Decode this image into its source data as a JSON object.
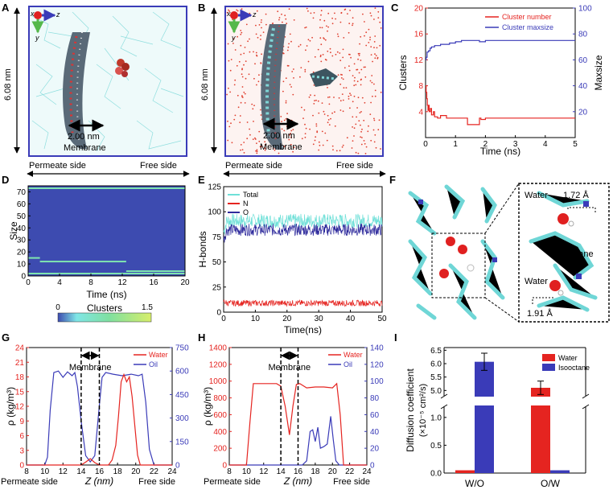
{
  "panel_labels": [
    "A",
    "B",
    "C",
    "D",
    "E",
    "F",
    "G",
    "H",
    "I"
  ],
  "colors": {
    "red": "#e52420",
    "blue": "#3a3bb8",
    "cyan": "#7fe0e0",
    "frame": "#3a3bb8",
    "heat_bg": "#3d4bb0",
    "heat_line": "#7fe6b0",
    "total": "#6fe0d8",
    "navy": "#2e2a9c"
  },
  "panel_a": {
    "axis_x": "x",
    "axis_y": "y",
    "axis_z": "z",
    "height_label": "6.08 nm",
    "width_label": "2.00 nm",
    "membrane_label": "Membrane",
    "permeate_label": "Permeate side",
    "free_label": "Free side"
  },
  "panel_b": {
    "axis_x": "x",
    "axis_y": "y",
    "axis_z": "z",
    "height_label": "6.08 nm",
    "width_label": "2.00 nm",
    "membrane_label": "Membrane",
    "permeate_label": "Permeate side",
    "free_label": "Free side"
  },
  "panel_f": {
    "water_top": "Water",
    "dist_top": "1.72 Å",
    "membrane": "Membrane",
    "water_bottom": "Water",
    "dist_bottom": "1.91 Å"
  },
  "chart_data": [
    {
      "id": "C",
      "type": "line",
      "xlabel": "Time (ns)",
      "ylabel": "Clusters",
      "y2label": "Maxsize",
      "xlim": [
        0,
        5
      ],
      "ylim": [
        0,
        20
      ],
      "y2lim": [
        0,
        100
      ],
      "xticks": [
        0,
        1,
        2,
        3,
        4,
        5
      ],
      "yticks": [
        4,
        8,
        12,
        16,
        20
      ],
      "y2ticks": [
        20,
        40,
        60,
        80,
        100
      ],
      "legend": [
        "Cluster number",
        "Cluster maxsize"
      ],
      "legend_position": "top-right",
      "series": [
        {
          "name": "Cluster number",
          "axis": "left",
          "x": [
            0,
            0.02,
            0.04,
            0.06,
            0.08,
            0.1,
            0.12,
            0.16,
            0.2,
            0.26,
            0.3,
            0.4,
            0.5,
            0.7,
            0.9,
            1.1,
            1.4,
            1.7,
            1.8,
            1.85,
            2.0,
            2.5,
            3.0,
            3.5,
            4.0,
            4.5,
            5.0
          ],
          "y": [
            8,
            7,
            6,
            5,
            4.2,
            5,
            4,
            4.5,
            3.5,
            4,
            3.2,
            3,
            3.4,
            3,
            3,
            3,
            2,
            2,
            3,
            2.8,
            3,
            3,
            3,
            3,
            3,
            3,
            3
          ]
        },
        {
          "name": "Cluster maxsize",
          "axis": "right",
          "x": [
            0,
            0.02,
            0.05,
            0.1,
            0.15,
            0.2,
            0.3,
            0.5,
            0.8,
            1.0,
            1.2,
            1.5,
            1.8,
            2.0,
            2.5,
            3.0,
            3.5,
            4.0,
            4.5,
            5.0
          ],
          "y": [
            60,
            62,
            66,
            67,
            69,
            70,
            71,
            72,
            73,
            74,
            75,
            75,
            74,
            75,
            75,
            75,
            75,
            75,
            75,
            75
          ]
        }
      ]
    },
    {
      "id": "D",
      "type": "heatmap",
      "xlabel": "Time (ns)",
      "ylabel": "Size",
      "xlim": [
        0,
        20
      ],
      "ylim": [
        0,
        75
      ],
      "xticks": [
        0,
        4,
        8,
        12,
        16,
        20
      ],
      "yticks": [
        0,
        10,
        20,
        30,
        40,
        50,
        60,
        70
      ],
      "colorbar_label": "Clusters",
      "colorbar_range": [
        0,
        1.5
      ],
      "bands": [
        {
          "size": 73,
          "t_start": 0,
          "t_end": 20,
          "value": 1
        },
        {
          "size": 15,
          "t_start": 0,
          "t_end": 1.5,
          "value": 1
        },
        {
          "size": 12,
          "t_start": 1.5,
          "t_end": 12.5,
          "value": 1
        },
        {
          "size": 4,
          "t_start": 12.5,
          "t_end": 20,
          "value": 1
        },
        {
          "size": 2,
          "t_start": 0,
          "t_end": 20,
          "value": 1
        }
      ]
    },
    {
      "id": "E",
      "type": "line",
      "xlabel": "Time(ns)",
      "ylabel": "H-bonds",
      "xlim": [
        0,
        50
      ],
      "ylim": [
        0,
        125
      ],
      "xticks": [
        0,
        10,
        20,
        30,
        40,
        50
      ],
      "yticks": [
        0,
        25,
        50,
        75,
        100,
        125
      ],
      "legend": [
        "Total",
        "N",
        "O"
      ],
      "legend_position": "top-left",
      "series": [
        {
          "name": "Total",
          "mean": 91,
          "noise": 7,
          "start": 80
        },
        {
          "name": "N",
          "mean": 9,
          "noise": 3,
          "start": 11
        },
        {
          "name": "O",
          "mean": 82,
          "noise": 6,
          "start": 72
        }
      ]
    },
    {
      "id": "G",
      "type": "line",
      "xlabel": "Z (nm)",
      "ylabel": "ρ (kg/m³)",
      "xlim": [
        8,
        24
      ],
      "ylim": [
        0,
        24
      ],
      "y2lim": [
        0,
        750
      ],
      "xticks": [
        8,
        10,
        12,
        14,
        16,
        18,
        20,
        22,
        24
      ],
      "yticks": [
        0,
        3,
        6,
        9,
        12,
        15,
        18,
        21,
        24
      ],
      "y2ticks": [
        0,
        150,
        300,
        450,
        600,
        750
      ],
      "legend": [
        "Water",
        "Oil"
      ],
      "legend_position": "top-right",
      "annotation": "Membrane",
      "membrane_bounds": [
        14,
        16
      ],
      "xlabel_left": "Permeate side",
      "xlabel_right": "Free side",
      "series": [
        {
          "name": "Water",
          "axis": "left",
          "x": [
            8,
            12,
            14,
            14.5,
            15,
            15.5,
            16,
            17,
            17.4,
            17.8,
            18.1,
            18.4,
            18.7,
            19.0,
            19.3,
            19.6,
            19.9,
            20.2,
            20.5,
            24
          ],
          "y": [
            0,
            0,
            0,
            0.6,
            1.3,
            0.5,
            0,
            0,
            1,
            4,
            10,
            17,
            18.5,
            17,
            18,
            14,
            8,
            2,
            0,
            0
          ]
        },
        {
          "name": "Oil",
          "axis": "right",
          "x": [
            8,
            10,
            10.3,
            10.6,
            11,
            11.5,
            12,
            12.5,
            13,
            13.3,
            13.6,
            14,
            14.5,
            15,
            15.5,
            16,
            16.3,
            16.7,
            17.5,
            18.5,
            19.5,
            20.3,
            20.7,
            21.1,
            21.5,
            22,
            24
          ],
          "y": [
            0,
            0,
            50,
            350,
            590,
            600,
            560,
            595,
            570,
            590,
            500,
            280,
            60,
            20,
            60,
            380,
            560,
            590,
            580,
            570,
            580,
            570,
            580,
            400,
            100,
            0,
            0
          ]
        }
      ]
    },
    {
      "id": "H",
      "type": "line",
      "xlabel": "Z (nm)",
      "ylabel": "ρ (kg/m³)",
      "xlim": [
        8,
        24
      ],
      "ylim": [
        0,
        1400
      ],
      "y2lim": [
        0,
        140
      ],
      "xticks": [
        8,
        10,
        12,
        14,
        16,
        18,
        20,
        22,
        24
      ],
      "yticks": [
        0,
        200,
        400,
        600,
        800,
        1000,
        1200,
        1400
      ],
      "y2ticks": [
        0,
        20,
        40,
        60,
        80,
        100,
        120,
        140
      ],
      "legend": [
        "Water",
        "Oil"
      ],
      "legend_position": "top-right",
      "annotation": "Membrane",
      "membrane_bounds": [
        14,
        16
      ],
      "xlabel_left": "Permeate side",
      "xlabel_right": "Free side",
      "series": [
        {
          "name": "Water",
          "axis": "left",
          "x": [
            8,
            10,
            10.4,
            10.8,
            12,
            13.5,
            14,
            14.5,
            15,
            15.4,
            15.8,
            16.2,
            17,
            18,
            19,
            20,
            20.5,
            20.9,
            21.3,
            24
          ],
          "y": [
            0,
            0,
            500,
            970,
            970,
            970,
            940,
            700,
            360,
            700,
            960,
            970,
            920,
            930,
            930,
            920,
            970,
            600,
            0,
            0
          ]
        },
        {
          "name": "Oil",
          "axis": "right",
          "x": [
            8,
            16.5,
            17,
            17.4,
            17.7,
            18,
            18.3,
            18.6,
            19,
            19.4,
            19.8,
            20.1,
            20.4,
            20.8,
            24
          ],
          "y": [
            0,
            0,
            5,
            40,
            42,
            28,
            45,
            20,
            22,
            25,
            58,
            30,
            5,
            0,
            0
          ]
        }
      ]
    },
    {
      "id": "I",
      "type": "bar",
      "ylabel": "Diffusion coefficient",
      "ylabel_units": "(×10⁻⁵ cm²/s)",
      "categories": [
        "W/O",
        "O/W"
      ],
      "series": [
        {
          "name": "Water",
          "values": [
            0.05,
            5.1
          ],
          "errors": [
            0,
            0.25
          ]
        },
        {
          "name": "Isooctane",
          "values": [
            6.07,
            0.05
          ],
          "errors": [
            0.32,
            0
          ]
        }
      ],
      "yticks_lower": [
        0.0,
        0.5,
        1.0
      ],
      "yticks_upper": [
        5.0,
        5.5,
        6.0,
        6.5
      ],
      "axis_break": [
        1.2,
        4.8
      ],
      "legend_position": "top-right"
    }
  ]
}
